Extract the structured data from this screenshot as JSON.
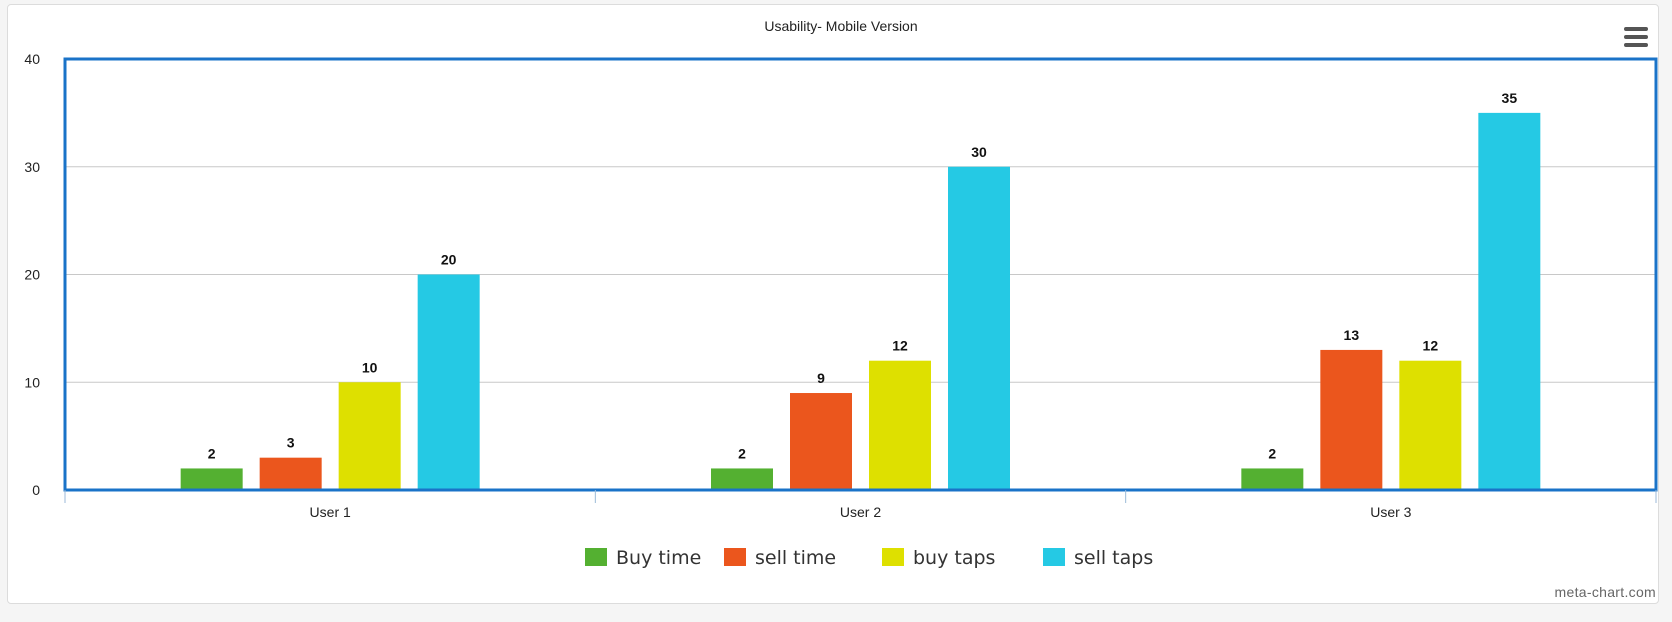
{
  "chart_data": {
    "type": "bar",
    "title": "Usability- Mobile Version",
    "categories": [
      "User 1",
      "User 2",
      "User 3"
    ],
    "series": [
      {
        "name": "Buy time",
        "values": [
          2,
          2,
          2
        ],
        "color": "#54b031"
      },
      {
        "name": "sell time",
        "values": [
          3,
          9,
          13
        ],
        "color": "#eb561d"
      },
      {
        "name": "buy taps",
        "values": [
          10,
          12,
          12
        ],
        "color": "#dee000"
      },
      {
        "name": "sell taps",
        "values": [
          20,
          30,
          35
        ],
        "color": "#25c9e4"
      }
    ],
    "ylim": [
      0,
      40
    ],
    "yticks": [
      0,
      10,
      20,
      30,
      40
    ],
    "grid": true,
    "legend": "bottom-center",
    "data_labels": true
  },
  "watermark": "meta-chart.com",
  "icons": {
    "menu": "hamburger-menu-icon"
  },
  "colors": {
    "plot_border": "#1a73c8",
    "grid": "#c8c8c8"
  }
}
